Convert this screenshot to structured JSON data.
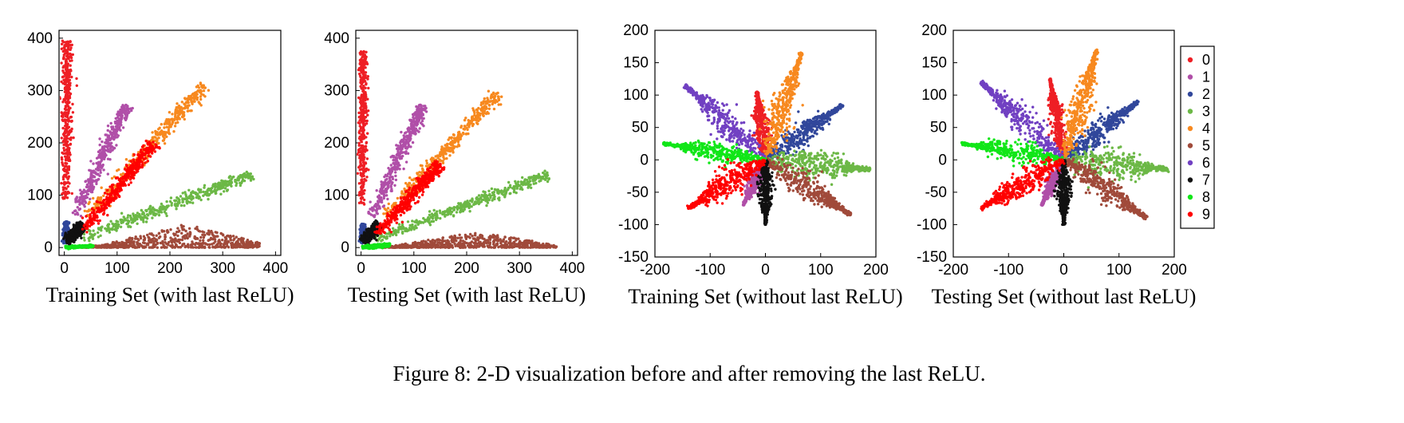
{
  "caption": "Figure 8: 2-D visualization before and after removing the last ReLU.",
  "legend": [
    {
      "label": "0",
      "color": "#ee1f25"
    },
    {
      "label": "1",
      "color": "#b04fa8"
    },
    {
      "label": "2",
      "color": "#31479b"
    },
    {
      "label": "3",
      "color": "#6cb846"
    },
    {
      "label": "4",
      "color": "#f7891f"
    },
    {
      "label": "5",
      "color": "#a04a3a"
    },
    {
      "label": "6",
      "color": "#7140c2"
    },
    {
      "label": "7",
      "color": "#111111"
    },
    {
      "label": "8",
      "color": "#11e618"
    },
    {
      "label": "9",
      "color": "#ff0000"
    }
  ],
  "chart_data": [
    {
      "type": "scatter",
      "xlabel": "Training Set (with last ReLU)",
      "xlim": [
        -10,
        410
      ],
      "ylim": [
        -15,
        415
      ],
      "xticks": [
        0,
        100,
        200,
        300,
        400
      ],
      "yticks": [
        0,
        100,
        200,
        300,
        400
      ],
      "series": [
        {
          "label": "0",
          "shape": "line",
          "from": [
            2,
            90
          ],
          "to": [
            6,
            395
          ],
          "width": 9
        },
        {
          "label": "1",
          "shape": "line",
          "from": [
            20,
            60
          ],
          "to": [
            118,
            272
          ],
          "width": 12
        },
        {
          "label": "2",
          "shape": "line",
          "from": [
            2,
            8
          ],
          "to": [
            4,
            50
          ],
          "width": 4
        },
        {
          "label": "3",
          "shape": "line",
          "from": [
            25,
            15
          ],
          "to": [
            355,
            140
          ],
          "width": 11
        },
        {
          "label": "4",
          "shape": "line",
          "from": [
            45,
            60
          ],
          "to": [
            265,
            310
          ],
          "width": 13
        },
        {
          "label": "5",
          "shape": "blob",
          "x": [
            30,
            370
          ],
          "y": [
            0,
            45
          ],
          "peak_x": 230
        },
        {
          "label": "7",
          "shape": "line",
          "from": [
            4,
            10
          ],
          "to": [
            35,
            45
          ],
          "width": 10
        },
        {
          "label": "8",
          "shape": "line",
          "from": [
            2,
            0
          ],
          "to": [
            55,
            3
          ],
          "width": 2
        },
        {
          "label": "9",
          "shape": "line",
          "from": [
            35,
            30
          ],
          "to": [
            170,
            200
          ],
          "width": 12
        }
      ]
    },
    {
      "type": "scatter",
      "xlabel": "Testing Set (with last ReLU)",
      "xlim": [
        -10,
        410
      ],
      "ylim": [
        -15,
        415
      ],
      "xticks": [
        0,
        100,
        200,
        300,
        400
      ],
      "yticks": [
        0,
        100,
        200,
        300,
        400
      ],
      "series": [
        {
          "label": "0",
          "shape": "line",
          "from": [
            2,
            80
          ],
          "to": [
            4,
            375
          ],
          "width": 7
        },
        {
          "label": "1",
          "shape": "line",
          "from": [
            20,
            60
          ],
          "to": [
            118,
            272
          ],
          "width": 11
        },
        {
          "label": "2",
          "shape": "line",
          "from": [
            2,
            8
          ],
          "to": [
            4,
            45
          ],
          "width": 4
        },
        {
          "label": "3",
          "shape": "line",
          "from": [
            25,
            15
          ],
          "to": [
            355,
            140
          ],
          "width": 10
        },
        {
          "label": "4",
          "shape": "line",
          "from": [
            45,
            60
          ],
          "to": [
            260,
            295
          ],
          "width": 13
        },
        {
          "label": "5",
          "shape": "blob",
          "x": [
            30,
            370
          ],
          "y": [
            0,
            30
          ],
          "peak_x": 220
        },
        {
          "label": "7",
          "shape": "line",
          "from": [
            4,
            10
          ],
          "to": [
            35,
            45
          ],
          "width": 10
        },
        {
          "label": "8",
          "shape": "line",
          "from": [
            2,
            0
          ],
          "to": [
            55,
            5
          ],
          "width": 3
        },
        {
          "label": "9",
          "shape": "line",
          "from": [
            30,
            25
          ],
          "to": [
            150,
            160
          ],
          "width": 12
        }
      ]
    },
    {
      "type": "scatter",
      "xlabel": "Training Set (without last ReLU)",
      "xlim": [
        -200,
        200
      ],
      "ylim": [
        -150,
        200
      ],
      "xticks": [
        -200,
        -100,
        0,
        100,
        200
      ],
      "yticks": [
        -150,
        -100,
        -50,
        0,
        50,
        100,
        150,
        200
      ],
      "series": [
        {
          "label": "0",
          "shape": "petal",
          "to": [
            -15,
            105
          ],
          "width": 16
        },
        {
          "label": "1",
          "shape": "petal",
          "to": [
            -40,
            -70
          ],
          "width": 12
        },
        {
          "label": "2",
          "shape": "petal",
          "to": [
            140,
            85
          ],
          "width": 20
        },
        {
          "label": "3",
          "shape": "petal",
          "to": [
            190,
            -15
          ],
          "width": 24
        },
        {
          "label": "4",
          "shape": "petal",
          "to": [
            65,
            165
          ],
          "width": 22
        },
        {
          "label": "5",
          "shape": "petal",
          "to": [
            155,
            -85
          ],
          "width": 22
        },
        {
          "label": "6",
          "shape": "petal",
          "to": [
            -145,
            115
          ],
          "width": 22
        },
        {
          "label": "7",
          "shape": "petal",
          "to": [
            0,
            -100
          ],
          "width": 14
        },
        {
          "label": "8",
          "shape": "petal",
          "to": [
            -185,
            25
          ],
          "width": 16
        },
        {
          "label": "9",
          "shape": "petal",
          "to": [
            -140,
            -75
          ],
          "width": 22
        }
      ]
    },
    {
      "type": "scatter",
      "xlabel": "Testing Set (without last ReLU)",
      "xlim": [
        -200,
        200
      ],
      "ylim": [
        -150,
        200
      ],
      "xticks": [
        -200,
        -100,
        0,
        100,
        200
      ],
      "yticks": [
        -150,
        -100,
        -50,
        0,
        50,
        100,
        150,
        200
      ],
      "series": [
        {
          "label": "0",
          "shape": "petal",
          "to": [
            -25,
            125
          ],
          "width": 14
        },
        {
          "label": "1",
          "shape": "petal",
          "to": [
            -40,
            -70
          ],
          "width": 12
        },
        {
          "label": "2",
          "shape": "petal",
          "to": [
            135,
            90
          ],
          "width": 20
        },
        {
          "label": "3",
          "shape": "petal",
          "to": [
            190,
            -15
          ],
          "width": 24
        },
        {
          "label": "4",
          "shape": "petal",
          "to": [
            60,
            170
          ],
          "width": 22
        },
        {
          "label": "5",
          "shape": "petal",
          "to": [
            150,
            -90
          ],
          "width": 22
        },
        {
          "label": "6",
          "shape": "petal",
          "to": [
            -150,
            120
          ],
          "width": 22
        },
        {
          "label": "7",
          "shape": "petal",
          "to": [
            0,
            -100
          ],
          "width": 14
        },
        {
          "label": "8",
          "shape": "petal",
          "to": [
            -185,
            25
          ],
          "width": 16
        },
        {
          "label": "9",
          "shape": "petal",
          "to": [
            -150,
            -75
          ],
          "width": 22
        }
      ]
    }
  ]
}
